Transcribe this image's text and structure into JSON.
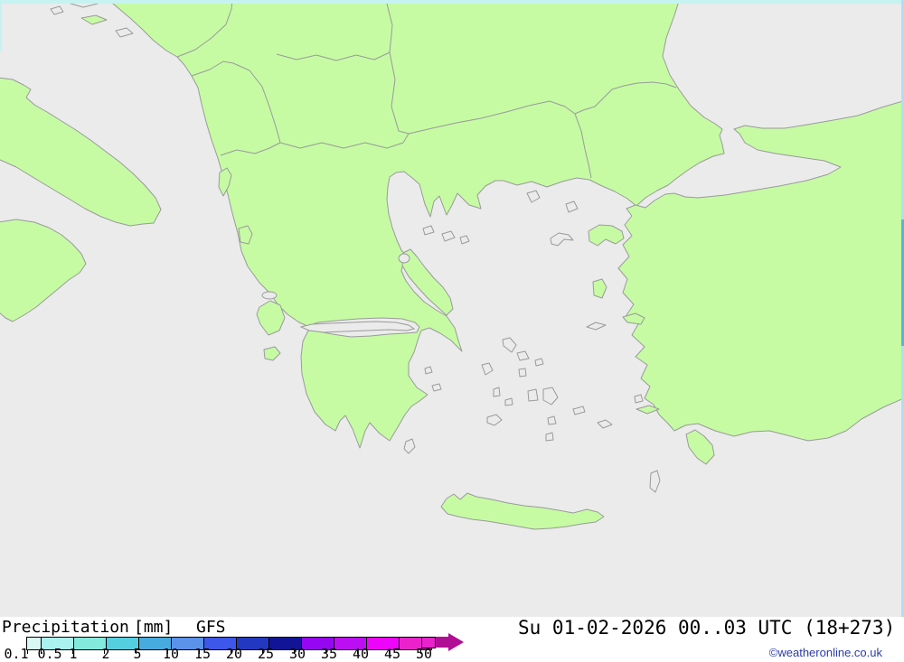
{
  "map": {
    "sea_color": "#ebebeb",
    "land_color": "#c6fba4",
    "coast_color": "#9a9a9a",
    "edge_precipitation_colors": {
      "top": "#c6f3f1",
      "left": "#c6f3f1",
      "right_light": "#a5e3f6",
      "right_medium": "#58b0e6"
    }
  },
  "legend": {
    "title_product": "Precipitation",
    "title_unit": "[mm]",
    "title_model": "GFS",
    "tick_labels": [
      "0.1",
      "0.5",
      "1",
      "2",
      "5",
      "10",
      "15",
      "20",
      "25",
      "30",
      "35",
      "40",
      "45",
      "50"
    ],
    "segment_colors": [
      "#d9f7f3",
      "#aaf2ef",
      "#84e9dd",
      "#54cfdf",
      "#46abdf",
      "#5b92ea",
      "#3c57e9",
      "#2338c0",
      "#111495",
      "#9507f0",
      "#bc0ef2",
      "#ec04fb",
      "#e922cb"
    ],
    "overflow_color": "#e922cb",
    "arrow_color": "#b10e96",
    "text_color": "#000000"
  },
  "footer": {
    "datetime": "Su 01-02-2026 00..03 UTC (18+273)",
    "copyright": "©weatheronline.co.uk",
    "copyright_color": "#2b3aa8"
  }
}
